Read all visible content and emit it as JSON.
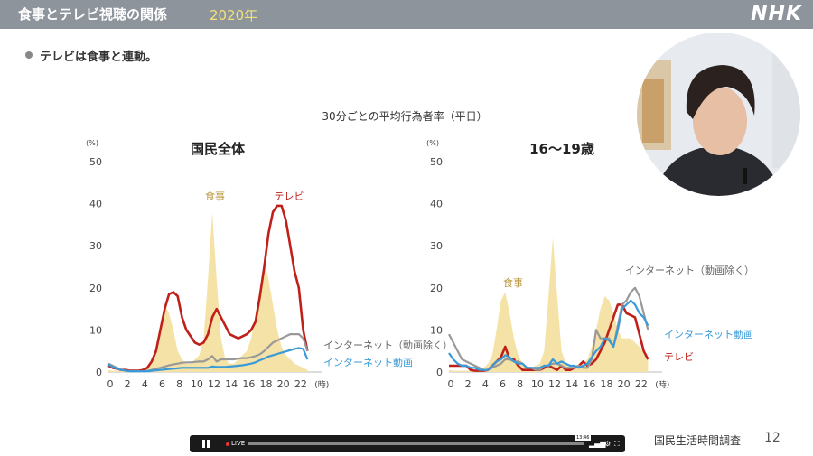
{
  "header": {
    "title": "食事とテレビ視聴の関係",
    "year": "2020年",
    "logo": "NHK"
  },
  "bullet": "テレビは食事と連動。",
  "chart_subtitle": "30分ごとの平均行為者率（平日）",
  "footer": {
    "source": "国民生活時間調査",
    "page": "12"
  },
  "player": {
    "live": "LIVE",
    "time": "13:46",
    "progress": 1.0
  },
  "colors": {
    "tv": "#c0201a",
    "meal": "#f4e2a6",
    "net": "#999999",
    "video": "#3a9ad9",
    "meal_label": "#b8943a"
  },
  "chart_data": [
    {
      "type": "line",
      "title": "国民全体",
      "unit_label": "(%)",
      "x_unit": "(時)",
      "ylim": [
        0,
        50
      ],
      "xlim": [
        0,
        24
      ],
      "yticks": [
        "0",
        "10",
        "20",
        "30",
        "40",
        "50"
      ],
      "xticks": [
        "0",
        "2",
        "4",
        "6",
        "8",
        "10",
        "12",
        "14",
        "16",
        "18",
        "20",
        "22"
      ],
      "x": [
        0,
        0.5,
        1,
        1.5,
        2,
        2.5,
        3,
        3.5,
        4,
        4.5,
        5,
        5.5,
        6,
        6.5,
        7,
        7.5,
        8,
        8.5,
        9,
        9.5,
        10,
        10.5,
        11,
        11.5,
        12,
        12.5,
        13,
        13.5,
        14,
        14.5,
        15,
        15.5,
        16,
        16.5,
        17,
        17.5,
        18,
        18.5,
        19,
        19.5,
        20,
        20.5,
        21,
        21.5,
        22,
        22.5,
        23
      ],
      "series": [
        {
          "name": "食事",
          "kind": "area",
          "values": [
            0.5,
            0.3,
            0.3,
            0.3,
            0.3,
            0.3,
            0.3,
            0.5,
            0.8,
            1.5,
            3,
            6,
            11,
            16,
            14,
            10,
            5,
            3,
            2,
            2,
            3,
            4,
            8,
            22,
            38,
            22,
            8,
            3,
            2,
            2,
            3,
            4,
            5,
            8,
            14,
            20,
            26,
            22,
            16,
            10,
            6,
            4,
            3,
            2,
            1.5,
            1,
            0.5
          ]
        },
        {
          "name": "テレビ",
          "kind": "line",
          "values": [
            1.5,
            1,
            0.8,
            0.5,
            0.5,
            0.3,
            0.3,
            0.3,
            0.5,
            1,
            2.5,
            5,
            10,
            15,
            18.5,
            19,
            18,
            13,
            10,
            8.5,
            7,
            6.5,
            7,
            9,
            13,
            15,
            13,
            11,
            9,
            8.5,
            8,
            8.5,
            9,
            10,
            12,
            18,
            25,
            33,
            38,
            39.5,
            39.5,
            36,
            30,
            24,
            20,
            10,
            5
          ]
        },
        {
          "name": "インターネット（動画除く）",
          "kind": "line",
          "values": [
            2,
            1.5,
            1,
            0.5,
            0.3,
            0.2,
            0.2,
            0.2,
            0.2,
            0.3,
            0.5,
            0.8,
            1,
            1.3,
            1.6,
            1.8,
            2,
            2.2,
            2.3,
            2.3,
            2.4,
            2.5,
            2.5,
            3,
            3.8,
            2.5,
            3,
            3,
            3,
            3,
            3.2,
            3.3,
            3.3,
            3.5,
            3.8,
            4.2,
            5,
            6,
            7,
            7.5,
            8,
            8.5,
            9,
            9,
            9,
            8,
            5
          ]
        },
        {
          "name": "インターネット動画",
          "kind": "line",
          "values": [
            1.8,
            1.2,
            0.8,
            0.5,
            0.3,
            0.2,
            0.2,
            0.2,
            0.2,
            0.2,
            0.3,
            0.4,
            0.5,
            0.6,
            0.7,
            0.8,
            0.9,
            1,
            1,
            1,
            1,
            1,
            1,
            1,
            1.3,
            1.2,
            1.2,
            1.2,
            1.3,
            1.4,
            1.5,
            1.6,
            1.8,
            2,
            2.3,
            2.8,
            3.2,
            3.7,
            4,
            4.3,
            4.6,
            4.9,
            5.2,
            5.5,
            5.7,
            5.5,
            3
          ]
        }
      ],
      "annotations": [
        "食事",
        "テレビ",
        "インターネット（動画除く）",
        "インターネット動画"
      ]
    },
    {
      "type": "line",
      "title": "16〜19歳",
      "unit_label": "(%)",
      "x_unit": "(時)",
      "ylim": [
        0,
        50
      ],
      "xlim": [
        0,
        24
      ],
      "yticks": [
        "0",
        "10",
        "20",
        "30",
        "40",
        "50"
      ],
      "xticks": [
        "0",
        "2",
        "4",
        "6",
        "8",
        "10",
        "12",
        "14",
        "16",
        "18",
        "20",
        "22"
      ],
      "x": [
        0,
        0.5,
        1,
        1.5,
        2,
        2.5,
        3,
        3.5,
        4,
        4.5,
        5,
        5.5,
        6,
        6.5,
        7,
        7.5,
        8,
        8.5,
        9,
        9.5,
        10,
        10.5,
        11,
        11.5,
        12,
        12.5,
        13,
        13.5,
        14,
        14.5,
        15,
        15.5,
        16,
        16.5,
        17,
        17.5,
        18,
        18.5,
        19,
        19.5,
        20,
        20.5,
        21,
        21.5,
        22,
        22.5,
        23
      ],
      "series": [
        {
          "name": "食事",
          "kind": "area",
          "values": [
            0.5,
            0.3,
            0.3,
            0.3,
            0.3,
            0.3,
            0.3,
            0.5,
            1,
            2,
            4,
            10,
            17,
            19,
            14,
            8,
            4,
            2,
            1,
            1,
            1.5,
            2,
            5,
            18,
            32,
            18,
            5,
            2,
            1,
            1,
            1.5,
            2,
            3,
            6,
            10,
            15,
            18,
            17,
            14,
            10,
            8,
            8,
            8,
            7,
            6,
            5,
            3
          ]
        },
        {
          "name": "テレビ",
          "kind": "line",
          "values": [
            1.5,
            1.5,
            1.5,
            1.5,
            1.5,
            0.5,
            0.3,
            0.3,
            0.3,
            0.5,
            1.5,
            2.5,
            3.5,
            6,
            3,
            3,
            1.5,
            0.5,
            0.5,
            0.5,
            0.5,
            0.5,
            1,
            1.5,
            1,
            0.5,
            1.5,
            0.5,
            0.5,
            1,
            1.5,
            2.5,
            1.5,
            2,
            3,
            5,
            7,
            10,
            13,
            16,
            16,
            14,
            13.5,
            13,
            9,
            5,
            3
          ]
        },
        {
          "name": "インターネット（動画除く）",
          "kind": "line",
          "values": [
            9,
            7,
            5,
            3,
            2.5,
            2,
            1.5,
            1,
            0.5,
            0.5,
            1,
            1.5,
            2,
            3,
            3,
            2.5,
            2.5,
            2,
            1,
            1,
            0.5,
            0.5,
            1.5,
            1.5,
            2,
            2,
            1.5,
            1,
            1,
            1,
            1.5,
            1,
            1,
            3,
            10,
            8,
            8,
            8,
            6,
            11,
            16,
            17,
            19,
            20,
            18,
            14,
            10
          ]
        },
        {
          "name": "インターネット動画",
          "kind": "line",
          "values": [
            4.5,
            3,
            2,
            1.5,
            1.5,
            1,
            1,
            0.5,
            0.5,
            0.5,
            1.5,
            2.5,
            3,
            4,
            3.5,
            2.5,
            2,
            2,
            1,
            1,
            1,
            1,
            1.5,
            1.5,
            3,
            2,
            2.5,
            2,
            1.5,
            1.5,
            1,
            1.5,
            2,
            3.5,
            5,
            6,
            8,
            7.5,
            6,
            10,
            15,
            16,
            17,
            16,
            14,
            13,
            11
          ]
        }
      ],
      "annotations": [
        "食事",
        "インターネット（動画除く）",
        "インターネット動画",
        "テレビ"
      ]
    }
  ]
}
